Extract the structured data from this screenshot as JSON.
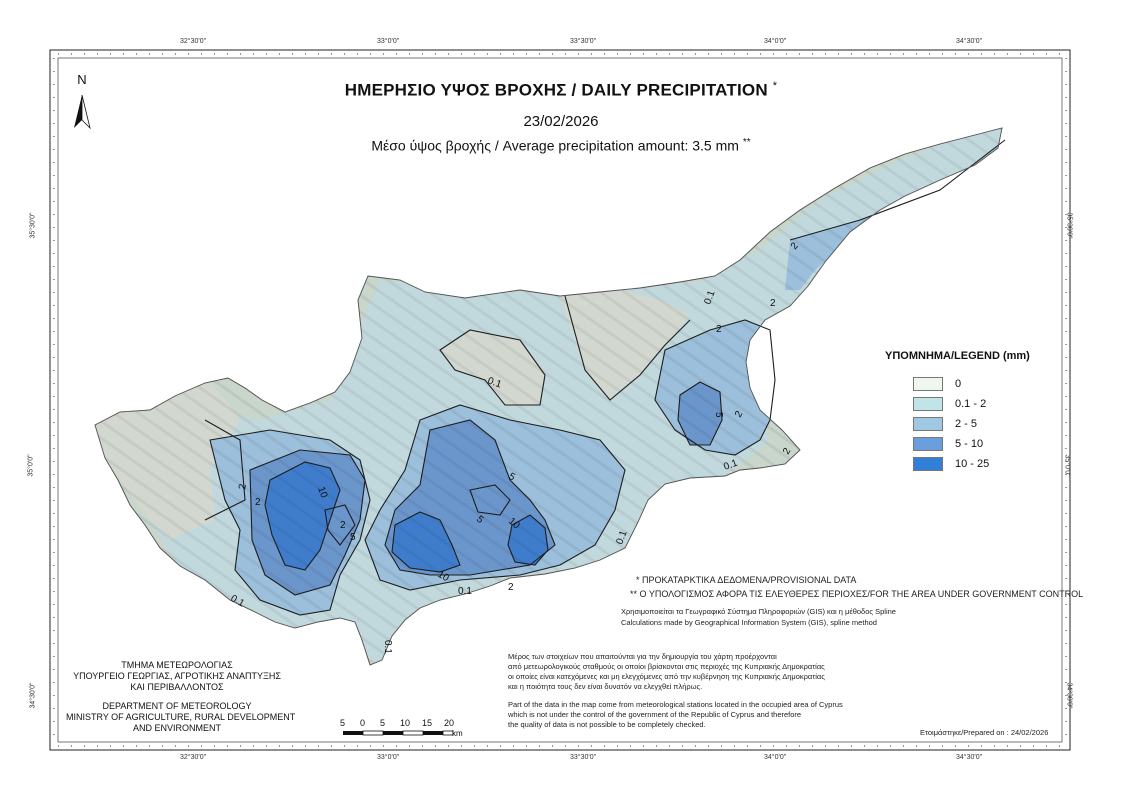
{
  "title": "ΗΜΕΡΗΣΙΟ ΥΨΟΣ ΒΡΟΧΗΣ / DAILY PRECIPITATION",
  "title_mark": "*",
  "date": "23/02/2026",
  "average_text": "Μέσο ύψος βροχής / Average precipitation amount: 3.5 mm",
  "average_mark": "**",
  "north_label": "N",
  "legend": {
    "header": "ΥΠΟΜΝΗΜΑ/LEGEND (mm)",
    "items": [
      {
        "label": "0",
        "color": "#eef7ee"
      },
      {
        "label": "0.1 - 2",
        "color": "#bfe5e8"
      },
      {
        "label": "2 - 5",
        "color": "#9fc8e3"
      },
      {
        "label": "5 - 10",
        "color": "#6a9edc"
      },
      {
        "label": "10 - 25",
        "color": "#2f7fd8"
      }
    ]
  },
  "notes": {
    "provisional": "* ΠΡΟΚΑΤΑΡΚΤΙΚΑ ΔΕΔΟΜΕΝΑ/PROVISIONAL DATA",
    "area": "** Ο ΥΠΟΛΟΓΙΣΜΟΣ ΑΦΟΡΑ ΤΙΣ ΕΛΕΥΘΕΡΕΣ ΠΕΡΙΟΧΕΣ/FOR THE AREA UNDER GOVERNMENT CONTROL",
    "gis_gr": "Χρησιμοποιείται τα Γεωγραφικό Σύστημα Πληροφοριών (GIS) και η μέθοδος Spline",
    "gis_en": "Calculations made by Geographical Information System (GIS), spline method",
    "data_gr_1": "Μέρος των στοιχείων που απαιτούνται για την δημιουργία του χάρτη προέρχονται",
    "data_gr_2": "από μετεωρολογικούς σταθμούς οι οποίοι βρίσκονται στις περιοχές της Κυπριακής Δημοκρατίας",
    "data_gr_3": "οι οποίες είναι κατεχόμενες και μη ελεγχόμενες από την κυβέρνηση της Κυπριακής Δημοκρατίας",
    "data_gr_4": "και η ποιότητα τους δεν είναι δυνατόν να ελεγχθεί πλήρως.",
    "data_en_1": "Part of the data in the map come from meteorological stations located in the occupied area of Cyprus",
    "data_en_2": "which is not under the control of the government of the Republic of Cyprus and therefore",
    "data_en_3": "the quality of data is not possible to be completely checked.",
    "prepared": "Ετοιμάστηκε/Prepared on : 24/02/2026"
  },
  "department": {
    "gr_1": "ΤΜΗΜΑ ΜΕΤΕΩΡΟΛΟΓΙΑΣ",
    "gr_2": "ΥΠΟΥΡΓΕΙΟ ΓΕΩΡΓΙΑΣ, ΑΓΡΟΤΙΚΗΣ ΑΝΑΠΤΥΞΗΣ",
    "gr_3": "ΚΑΙ ΠΕΡΙΒΑΛΛΟΝΤΟΣ",
    "en_1": "DEPARTMENT OF METEOROLOGY",
    "en_2": "MINISTRY OF AGRICULTURE, RURAL DEVELOPMENT",
    "en_3": "AND ENVIRONMENT"
  },
  "scale": {
    "labels": [
      "5",
      "0",
      "5",
      "10",
      "15",
      "20"
    ],
    "unit": "km"
  },
  "grid_labels": {
    "lon": [
      "32°30'0\"",
      "33°0'0\"",
      "33°30'0\"",
      "34°0'0\"",
      "34°30'0\""
    ],
    "lat": [
      "35°30'0\"",
      "35°0'0\"",
      "34°30'0\""
    ]
  },
  "contour_labels": [
    "0.1",
    "0.1",
    "0.1",
    "0.1",
    "0.1",
    "0.1",
    "0.1",
    "2",
    "2",
    "2",
    "2",
    "2",
    "2",
    "2",
    "2",
    "2",
    "5",
    "5",
    "5",
    "5",
    "10",
    "10",
    "10"
  ]
}
